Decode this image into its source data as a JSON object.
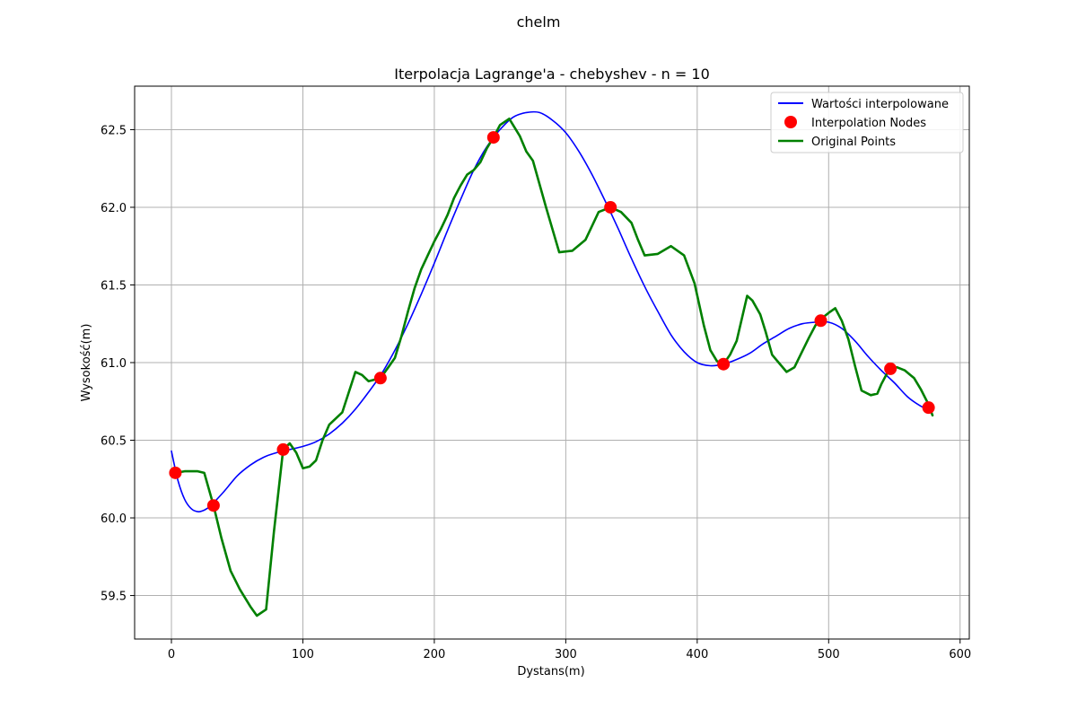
{
  "figure": {
    "suptitle": "chelm"
  },
  "chart_data": {
    "type": "line",
    "title": "Iterpolacja Lagrange'a - chebyshev - n = 10",
    "xlabel": "Dystans(m)",
    "ylabel": "Wysokość(m)",
    "xlim": [
      -28,
      607
    ],
    "ylim": [
      59.22,
      62.78
    ],
    "xticks": [
      0,
      100,
      200,
      300,
      400,
      500,
      600
    ],
    "yticks": [
      59.5,
      60.0,
      60.5,
      61.0,
      61.5,
      62.0,
      62.5
    ],
    "xtick_labels": [
      "0",
      "100",
      "200",
      "300",
      "400",
      "500",
      "600"
    ],
    "ytick_labels": [
      "59.5",
      "60.0",
      "60.5",
      "61.0",
      "61.5",
      "62.0",
      "62.5"
    ],
    "grid": true,
    "legend_position": "top-right",
    "series": [
      {
        "name": "Wartości interpolowane",
        "kind": "line",
        "color": "#0000ff",
        "x": [
          0,
          5,
          10,
          15,
          20,
          25,
          30,
          40,
          50,
          60,
          70,
          80,
          90,
          100,
          110,
          120,
          130,
          140,
          150,
          160,
          170,
          180,
          190,
          200,
          210,
          220,
          230,
          240,
          250,
          260,
          270,
          280,
          290,
          300,
          310,
          320,
          330,
          340,
          350,
          360,
          370,
          380,
          390,
          400,
          410,
          420,
          430,
          440,
          450,
          460,
          470,
          480,
          490,
          500,
          510,
          520,
          530,
          540,
          550,
          560,
          570,
          576
        ],
        "y": [
          60.43,
          60.24,
          60.12,
          60.06,
          60.04,
          60.05,
          60.08,
          60.17,
          60.27,
          60.34,
          60.39,
          60.42,
          60.44,
          60.46,
          60.49,
          60.54,
          60.61,
          60.7,
          60.81,
          60.93,
          61.08,
          61.25,
          61.44,
          61.64,
          61.85,
          62.05,
          62.24,
          62.39,
          62.5,
          62.58,
          62.61,
          62.61,
          62.56,
          62.48,
          62.36,
          62.21,
          62.04,
          61.86,
          61.67,
          61.49,
          61.33,
          61.18,
          61.07,
          61.0,
          60.98,
          60.99,
          61.02,
          61.06,
          61.12,
          61.17,
          61.22,
          61.25,
          61.26,
          61.26,
          61.22,
          61.14,
          61.04,
          60.95,
          60.87,
          60.78,
          60.72,
          60.7
        ]
      },
      {
        "name": "Interpolation Nodes",
        "kind": "scatter",
        "color": "#ff0000",
        "x": [
          3,
          32,
          85,
          159,
          245,
          334,
          420,
          494,
          547,
          576
        ],
        "y": [
          60.29,
          60.08,
          60.44,
          60.9,
          62.45,
          62.0,
          60.99,
          61.27,
          60.96,
          60.71
        ]
      },
      {
        "name": "Original Points",
        "kind": "line",
        "color": "#008000",
        "x": [
          3,
          10,
          20,
          25,
          32,
          38,
          45,
          52,
          60,
          65,
          72,
          78,
          85,
          90,
          95,
          100,
          105,
          110,
          115,
          120,
          130,
          135,
          140,
          145,
          150,
          159,
          165,
          170,
          175,
          180,
          185,
          190,
          195,
          200,
          205,
          210,
          215,
          220,
          225,
          230,
          235,
          240,
          245,
          250,
          257,
          265,
          270,
          275,
          285,
          295,
          305,
          315,
          320,
          325,
          334,
          342,
          350,
          355,
          360,
          370,
          380,
          390,
          398,
          405,
          410,
          415,
          420,
          425,
          430,
          438,
          442,
          448,
          452,
          457,
          462,
          468,
          474,
          478,
          485,
          490,
          494,
          500,
          505,
          510,
          515,
          520,
          525,
          532,
          537,
          540,
          545,
          547,
          552,
          558,
          565,
          570,
          576,
          579
        ],
        "y": [
          60.29,
          60.3,
          60.3,
          60.29,
          60.08,
          59.87,
          59.66,
          59.54,
          59.43,
          59.37,
          59.41,
          59.91,
          60.44,
          60.48,
          60.42,
          60.32,
          60.33,
          60.37,
          60.5,
          60.6,
          60.68,
          60.81,
          60.94,
          60.92,
          60.88,
          60.9,
          60.97,
          61.03,
          61.17,
          61.33,
          61.48,
          61.6,
          61.69,
          61.78,
          61.86,
          61.95,
          62.06,
          62.14,
          62.21,
          62.24,
          62.29,
          62.38,
          62.45,
          62.53,
          62.57,
          62.46,
          62.36,
          62.3,
          62.0,
          61.71,
          61.72,
          61.79,
          61.88,
          61.97,
          62.0,
          61.97,
          61.9,
          61.79,
          61.69,
          61.7,
          61.75,
          61.69,
          61.51,
          61.24,
          61.08,
          61.01,
          60.99,
          61.05,
          61.14,
          61.43,
          61.4,
          61.31,
          61.2,
          61.05,
          61.0,
          60.94,
          60.97,
          61.04,
          61.16,
          61.24,
          61.28,
          61.32,
          61.35,
          61.27,
          61.15,
          60.98,
          60.82,
          60.79,
          60.8,
          60.86,
          60.94,
          60.96,
          60.97,
          60.95,
          60.9,
          60.83,
          60.73,
          60.66
        ]
      }
    ]
  }
}
